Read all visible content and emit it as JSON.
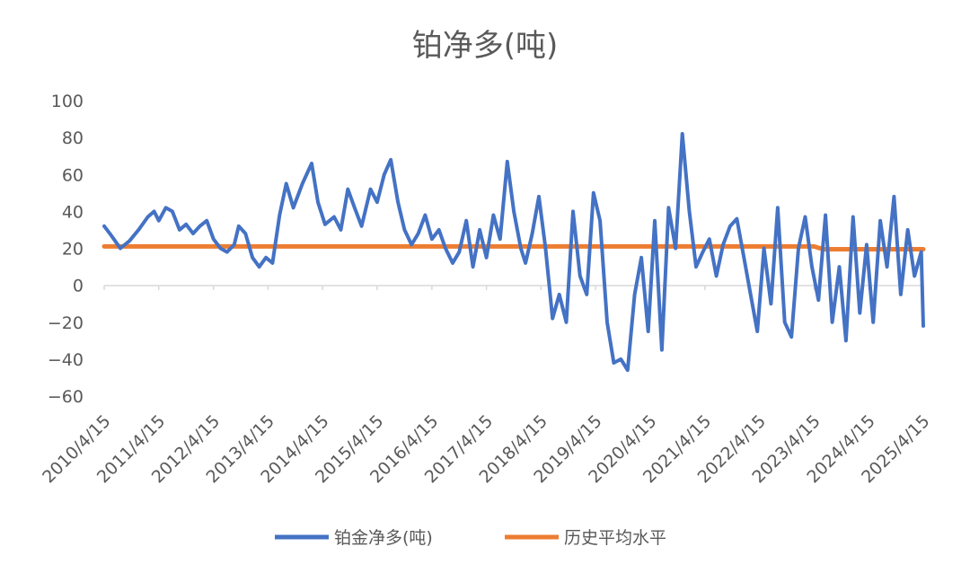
{
  "chart_data": {
    "type": "line",
    "title": "铂净多(吨)",
    "xlabel": "",
    "ylabel": "",
    "ylim": [
      -60,
      100
    ],
    "y_ticks": [
      100,
      80,
      60,
      40,
      20,
      0,
      -20,
      -40,
      -60
    ],
    "y_tick_labels": [
      "100",
      "80",
      "60",
      "40",
      "20",
      "0",
      "−20",
      "−40",
      "−60"
    ],
    "x_ticks": [
      "2010/4/15",
      "2011/4/15",
      "2012/4/15",
      "2013/4/15",
      "2014/4/15",
      "2015/4/15",
      "2016/4/15",
      "2017/4/15",
      "2018/4/15",
      "2019/4/15",
      "2020/4/15",
      "2021/4/15",
      "2022/4/15",
      "2023/4/15",
      "2024/4/15",
      "2025/4/15"
    ],
    "x_range": [
      "2010/4/15",
      "2025/4/15"
    ],
    "grid": false,
    "legend_position": "bottom",
    "series": [
      {
        "name": "铂金净多(吨)",
        "color": "#4472C4",
        "points": [
          [
            "2010/4/15",
            32
          ],
          [
            "2010/6/1",
            27
          ],
          [
            "2010/8/1",
            20
          ],
          [
            "2010/10/1",
            24
          ],
          [
            "2010/12/1",
            30
          ],
          [
            "2011/2/1",
            37
          ],
          [
            "2011/3/15",
            40
          ],
          [
            "2011/4/15",
            35
          ],
          [
            "2011/6/1",
            42
          ],
          [
            "2011/7/15",
            40
          ],
          [
            "2011/9/1",
            30
          ],
          [
            "2011/10/15",
            33
          ],
          [
            "2011/12/1",
            28
          ],
          [
            "2012/1/15",
            32
          ],
          [
            "2012/3/1",
            35
          ],
          [
            "2012/4/15",
            25
          ],
          [
            "2012/6/1",
            20
          ],
          [
            "2012/7/15",
            18
          ],
          [
            "2012/9/1",
            22
          ],
          [
            "2012/10/1",
            32
          ],
          [
            "2012/11/15",
            28
          ],
          [
            "2013/1/1",
            15
          ],
          [
            "2013/2/15",
            10
          ],
          [
            "2013/4/1",
            15
          ],
          [
            "2013/5/15",
            12
          ],
          [
            "2013/7/1",
            38
          ],
          [
            "2013/8/15",
            55
          ],
          [
            "2013/10/1",
            42
          ],
          [
            "2013/12/1",
            55
          ],
          [
            "2014/2/1",
            66
          ],
          [
            "2014/3/15",
            45
          ],
          [
            "2014/5/1",
            33
          ],
          [
            "2014/7/1",
            37
          ],
          [
            "2014/8/15",
            30
          ],
          [
            "2014/10/1",
            52
          ],
          [
            "2014/11/15",
            42
          ],
          [
            "2015/1/1",
            32
          ],
          [
            "2015/3/1",
            52
          ],
          [
            "2015/4/15",
            45
          ],
          [
            "2015/6/1",
            60
          ],
          [
            "2015/7/15",
            68
          ],
          [
            "2015/9/1",
            45
          ],
          [
            "2015/10/15",
            30
          ],
          [
            "2015/12/1",
            22
          ],
          [
            "2016/1/15",
            28
          ],
          [
            "2016/3/1",
            38
          ],
          [
            "2016/4/15",
            25
          ],
          [
            "2016/6/1",
            30
          ],
          [
            "2016/7/15",
            20
          ],
          [
            "2016/9/1",
            12
          ],
          [
            "2016/10/15",
            18
          ],
          [
            "2016/12/1",
            35
          ],
          [
            "2017/1/15",
            10
          ],
          [
            "2017/3/1",
            30
          ],
          [
            "2017/4/15",
            15
          ],
          [
            "2017/6/1",
            38
          ],
          [
            "2017/7/15",
            25
          ],
          [
            "2017/9/1",
            67
          ],
          [
            "2017/10/15",
            40
          ],
          [
            "2017/12/1",
            20
          ],
          [
            "2018/1/1",
            12
          ],
          [
            "2018/2/15",
            28
          ],
          [
            "2018/4/1",
            48
          ],
          [
            "2018/5/15",
            20
          ],
          [
            "2018/7/1",
            -18
          ],
          [
            "2018/8/15",
            -5
          ],
          [
            "2018/10/1",
            -20
          ],
          [
            "2018/11/15",
            40
          ],
          [
            "2019/1/1",
            5
          ],
          [
            "2019/2/15",
            -5
          ],
          [
            "2019/4/1",
            50
          ],
          [
            "2019/5/15",
            35
          ],
          [
            "2019/7/1",
            -20
          ],
          [
            "2019/8/15",
            -42
          ],
          [
            "2019/10/1",
            -40
          ],
          [
            "2019/11/15",
            -46
          ],
          [
            "2020/1/1",
            -5
          ],
          [
            "2020/2/15",
            15
          ],
          [
            "2020/4/1",
            -25
          ],
          [
            "2020/5/15",
            35
          ],
          [
            "2020/7/1",
            -35
          ],
          [
            "2020/8/15",
            42
          ],
          [
            "2020/10/1",
            20
          ],
          [
            "2020/11/15",
            82
          ],
          [
            "2021/1/1",
            40
          ],
          [
            "2021/2/15",
            10
          ],
          [
            "2021/4/1",
            18
          ],
          [
            "2021/5/15",
            25
          ],
          [
            "2021/7/1",
            5
          ],
          [
            "2021/8/15",
            22
          ],
          [
            "2021/10/1",
            32
          ],
          [
            "2021/11/15",
            36
          ],
          [
            "2022/1/1",
            15
          ],
          [
            "2022/2/15",
            -5
          ],
          [
            "2022/4/1",
            -25
          ],
          [
            "2022/5/15",
            20
          ],
          [
            "2022/7/1",
            -10
          ],
          [
            "2022/8/15",
            42
          ],
          [
            "2022/10/1",
            -20
          ],
          [
            "2022/11/15",
            -28
          ],
          [
            "2023/1/1",
            20
          ],
          [
            "2023/2/15",
            37
          ],
          [
            "2023/4/1",
            10
          ],
          [
            "2023/5/15",
            -8
          ],
          [
            "2023/7/1",
            38
          ],
          [
            "2023/8/15",
            -20
          ],
          [
            "2023/10/1",
            10
          ],
          [
            "2023/11/15",
            -30
          ],
          [
            "2024/1/1",
            37
          ],
          [
            "2024/2/15",
            -15
          ],
          [
            "2024/4/1",
            22
          ],
          [
            "2024/5/15",
            -20
          ],
          [
            "2024/7/1",
            35
          ],
          [
            "2024/8/15",
            10
          ],
          [
            "2024/10/1",
            48
          ],
          [
            "2024/11/15",
            -5
          ],
          [
            "2025/1/1",
            30
          ],
          [
            "2025/2/15",
            5
          ],
          [
            "2025/4/1",
            18
          ],
          [
            "2025/4/15",
            -22
          ]
        ]
      },
      {
        "name": "历史平均水平",
        "color": "#ED7D31",
        "points": [
          [
            "2010/4/15",
            21
          ],
          [
            "2023/4/15",
            21
          ],
          [
            "2023/6/15",
            19.5
          ],
          [
            "2025/4/15",
            19.5
          ]
        ]
      }
    ]
  }
}
